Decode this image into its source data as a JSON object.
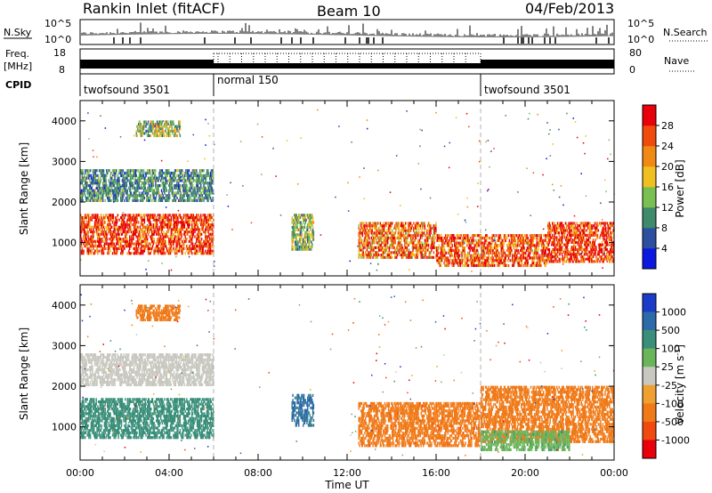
{
  "header": {
    "station": "Rankin Inlet (fitACF)",
    "beam": "Beam 10",
    "date": "04/Feb/2013"
  },
  "noise_panel": {
    "left_label": "N.Sky",
    "left_ticks": [
      "10^5",
      "10^0"
    ],
    "right_ticks": [
      "10^5",
      "10^0"
    ],
    "right_label": "N.Search"
  },
  "freq_panel": {
    "left_label_line1": "Freq.",
    "left_label_line2": "[MHz]",
    "left_ticks": [
      "18",
      "8"
    ],
    "right_ticks": [
      "80",
      "0"
    ],
    "right_label": "Nave"
  },
  "cpid": {
    "label": "CPID",
    "segments": [
      {
        "name": "twofsound 3501",
        "start": 0
      },
      {
        "name": "normal 150",
        "start": 6
      },
      {
        "name": "twofsound 3501",
        "start": 18
      }
    ]
  },
  "time_axis": {
    "label": "Time UT",
    "ticks": [
      "00:00",
      "04:00",
      "08:00",
      "12:00",
      "16:00",
      "20:00",
      "00:00"
    ]
  },
  "range_axis": {
    "label": "Slant Range [km]",
    "ticks": [
      "1000",
      "2000",
      "3000",
      "4000"
    ]
  },
  "power_scale": {
    "label": "Power [dB]",
    "ticks": [
      "4",
      "8",
      "12",
      "16",
      "20",
      "24",
      "28"
    ],
    "colors": [
      "#0a18e0",
      "#2c4fa0",
      "#3f8a6a",
      "#7abf52",
      "#f0c020",
      "#f08a14",
      "#f04a0c",
      "#e8000a"
    ]
  },
  "velocity_scale": {
    "label": "Velocity [m s",
    "label_sup": "-1",
    "label_end": "]",
    "ticks": [
      "1000",
      "500",
      "100",
      "25",
      "-25",
      "-100",
      "-500",
      "-1000"
    ],
    "colors": [
      "#1a3cc8",
      "#2d6aa8",
      "#3a8f7a",
      "#6ab55a",
      "#c8c8c0",
      "#f0a030",
      "#f07a18",
      "#f04a10",
      "#e8000a"
    ]
  },
  "chart_data": [
    {
      "type": "heatmap",
      "title": "Power",
      "xlabel": "Time UT",
      "ylabel": "Slant Range [km]",
      "xlim": [
        0,
        24
      ],
      "ylim": [
        180,
        4500
      ],
      "colorbar": "Power [dB]",
      "zlim": [
        0,
        32
      ],
      "features": [
        {
          "t0": 0,
          "t1": 6,
          "r0": 700,
          "r1": 1700,
          "level": 28
        },
        {
          "t0": 0,
          "t1": 6,
          "r0": 2000,
          "r1": 2800,
          "level": 10
        },
        {
          "t0": 2.5,
          "t1": 4.5,
          "r0": 3600,
          "r1": 4000,
          "level": 14
        },
        {
          "t0": 9.5,
          "t1": 10.5,
          "r0": 800,
          "r1": 1700,
          "level": 14
        },
        {
          "t0": 12.5,
          "t1": 16,
          "r0": 600,
          "r1": 1500,
          "level": 24
        },
        {
          "t0": 16,
          "t1": 21,
          "r0": 400,
          "r1": 1200,
          "level": 26
        },
        {
          "t0": 21,
          "t1": 24,
          "r0": 500,
          "r1": 1500,
          "level": 28
        }
      ]
    },
    {
      "type": "heatmap",
      "title": "Velocity",
      "xlabel": "Time UT",
      "ylabel": "Slant Range [km]",
      "xlim": [
        0,
        24
      ],
      "ylim": [
        180,
        4500
      ],
      "colorbar": "Velocity [m s-1]",
      "zlim": [
        -1000,
        1000
      ],
      "features": [
        {
          "t0": 0,
          "t1": 6,
          "r0": 700,
          "r1": 1700,
          "level": 300
        },
        {
          "t0": 0,
          "t1": 6,
          "r0": 2000,
          "r1": 2800,
          "level": 0
        },
        {
          "t0": 2.5,
          "t1": 4.5,
          "r0": 3600,
          "r1": 4000,
          "level": -300
        },
        {
          "t0": 9.5,
          "t1": 10.5,
          "r0": 1000,
          "r1": 1800,
          "level": 600
        },
        {
          "t0": 12.5,
          "t1": 18,
          "r0": 500,
          "r1": 1600,
          "level": -400
        },
        {
          "t0": 18,
          "t1": 24,
          "r0": 600,
          "r1": 2000,
          "level": -300
        },
        {
          "t0": 18,
          "t1": 22,
          "r0": 400,
          "r1": 900,
          "level": 80
        }
      ]
    }
  ]
}
